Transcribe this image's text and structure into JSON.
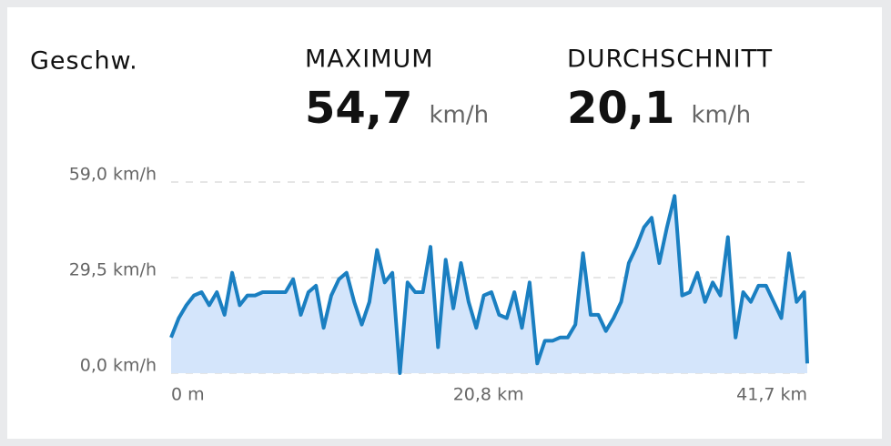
{
  "chart_data": {
    "type": "area",
    "title": "Geschw.",
    "stats": [
      {
        "label": "MAXIMUM",
        "value": "54,7",
        "unit": "km/h"
      },
      {
        "label": "DURCHSCHNITT",
        "value": "20,1",
        "unit": "km/h"
      }
    ],
    "color": "#1a7fc1",
    "fill": "#d4e5fb",
    "grid": true,
    "xlim": [
      0,
      41.7
    ],
    "xticks": [
      {
        "value": 0,
        "label": "0 m"
      },
      {
        "value": 20.8,
        "label": "20,8 km"
      },
      {
        "value": 41.7,
        "label": "41,7 km"
      }
    ],
    "ylim": [
      0,
      59
    ],
    "yticks": [
      {
        "value": 0,
        "label": "0,0 km/h"
      },
      {
        "value": 29.5,
        "label": "29,5 km/h"
      },
      {
        "value": 59,
        "label": "59,0 km/h"
      }
    ],
    "x": [
      0,
      0.5,
      1,
      1.5,
      2,
      2.5,
      3,
      3.5,
      4,
      4.5,
      5,
      5.5,
      6,
      6.5,
      7,
      7.5,
      8,
      8.5,
      9,
      9.5,
      10,
      10.5,
      11,
      11.5,
      12,
      12.5,
      13,
      13.5,
      14,
      14.5,
      15,
      15.5,
      16,
      16.5,
      17,
      17.5,
      18,
      18.5,
      19,
      19.5,
      20,
      20.5,
      21,
      21.5,
      22,
      22.5,
      23,
      23.5,
      24,
      24.5,
      25,
      25.5,
      26,
      26.5,
      27,
      27.5,
      28,
      28.5,
      29,
      29.5,
      30,
      30.5,
      31,
      31.5,
      32,
      32.5,
      33,
      33.5,
      34,
      34.5,
      35,
      35.5,
      36,
      36.5,
      37,
      37.5,
      38,
      38.5,
      39,
      39.5,
      40,
      40.5,
      41,
      41.5,
      41.7
    ],
    "values": [
      11,
      17,
      21,
      24,
      25,
      21,
      25,
      18,
      31,
      21,
      24,
      24,
      25,
      25,
      25,
      25,
      29,
      18,
      25,
      27,
      14,
      24,
      29,
      31,
      22,
      15,
      22,
      38,
      28,
      31,
      0,
      28,
      25,
      25,
      39,
      8,
      35,
      20,
      34,
      22,
      14,
      24,
      25,
      18,
      17,
      25,
      14,
      28,
      3,
      10,
      10,
      11,
      11,
      15,
      37,
      18,
      18,
      13,
      17,
      22,
      34,
      39,
      45,
      48,
      34,
      45,
      54.7,
      24,
      25,
      31,
      22,
      28,
      24,
      42,
      11,
      25,
      22,
      27,
      27,
      22,
      17,
      37,
      22,
      25,
      3
    ]
  }
}
